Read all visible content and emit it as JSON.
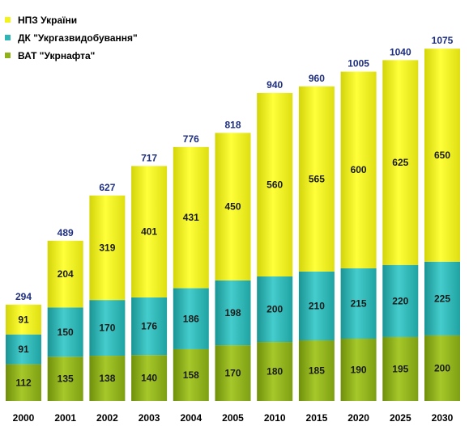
{
  "chart_data": {
    "type": "bar",
    "stacked": true,
    "categories": [
      "2000",
      "2001",
      "2002",
      "2003",
      "2004",
      "2005",
      "2010",
      "2015",
      "2020",
      "2025",
      "2030"
    ],
    "series": [
      {
        "name": "ВАТ \"Укрнафта\"",
        "color": "#8fb21a",
        "values": [
          112,
          135,
          138,
          140,
          158,
          170,
          180,
          185,
          190,
          195,
          200
        ]
      },
      {
        "name": "ДК \"Укргазвидобування\"",
        "color": "#2fb5b5",
        "values": [
          91,
          150,
          170,
          176,
          186,
          198,
          200,
          210,
          215,
          220,
          225
        ]
      },
      {
        "name": "НПЗ України",
        "color": "#f2f21c",
        "values": [
          91,
          204,
          319,
          401,
          431,
          450,
          560,
          565,
          600,
          625,
          650
        ]
      }
    ],
    "totals": [
      294,
      489,
      627,
      717,
      776,
      818,
      940,
      960,
      1005,
      1040,
      1075
    ],
    "ylim": [
      0,
      1120
    ],
    "legend": "top-left",
    "grid": false,
    "title": "",
    "xlabel": "",
    "ylabel": ""
  }
}
